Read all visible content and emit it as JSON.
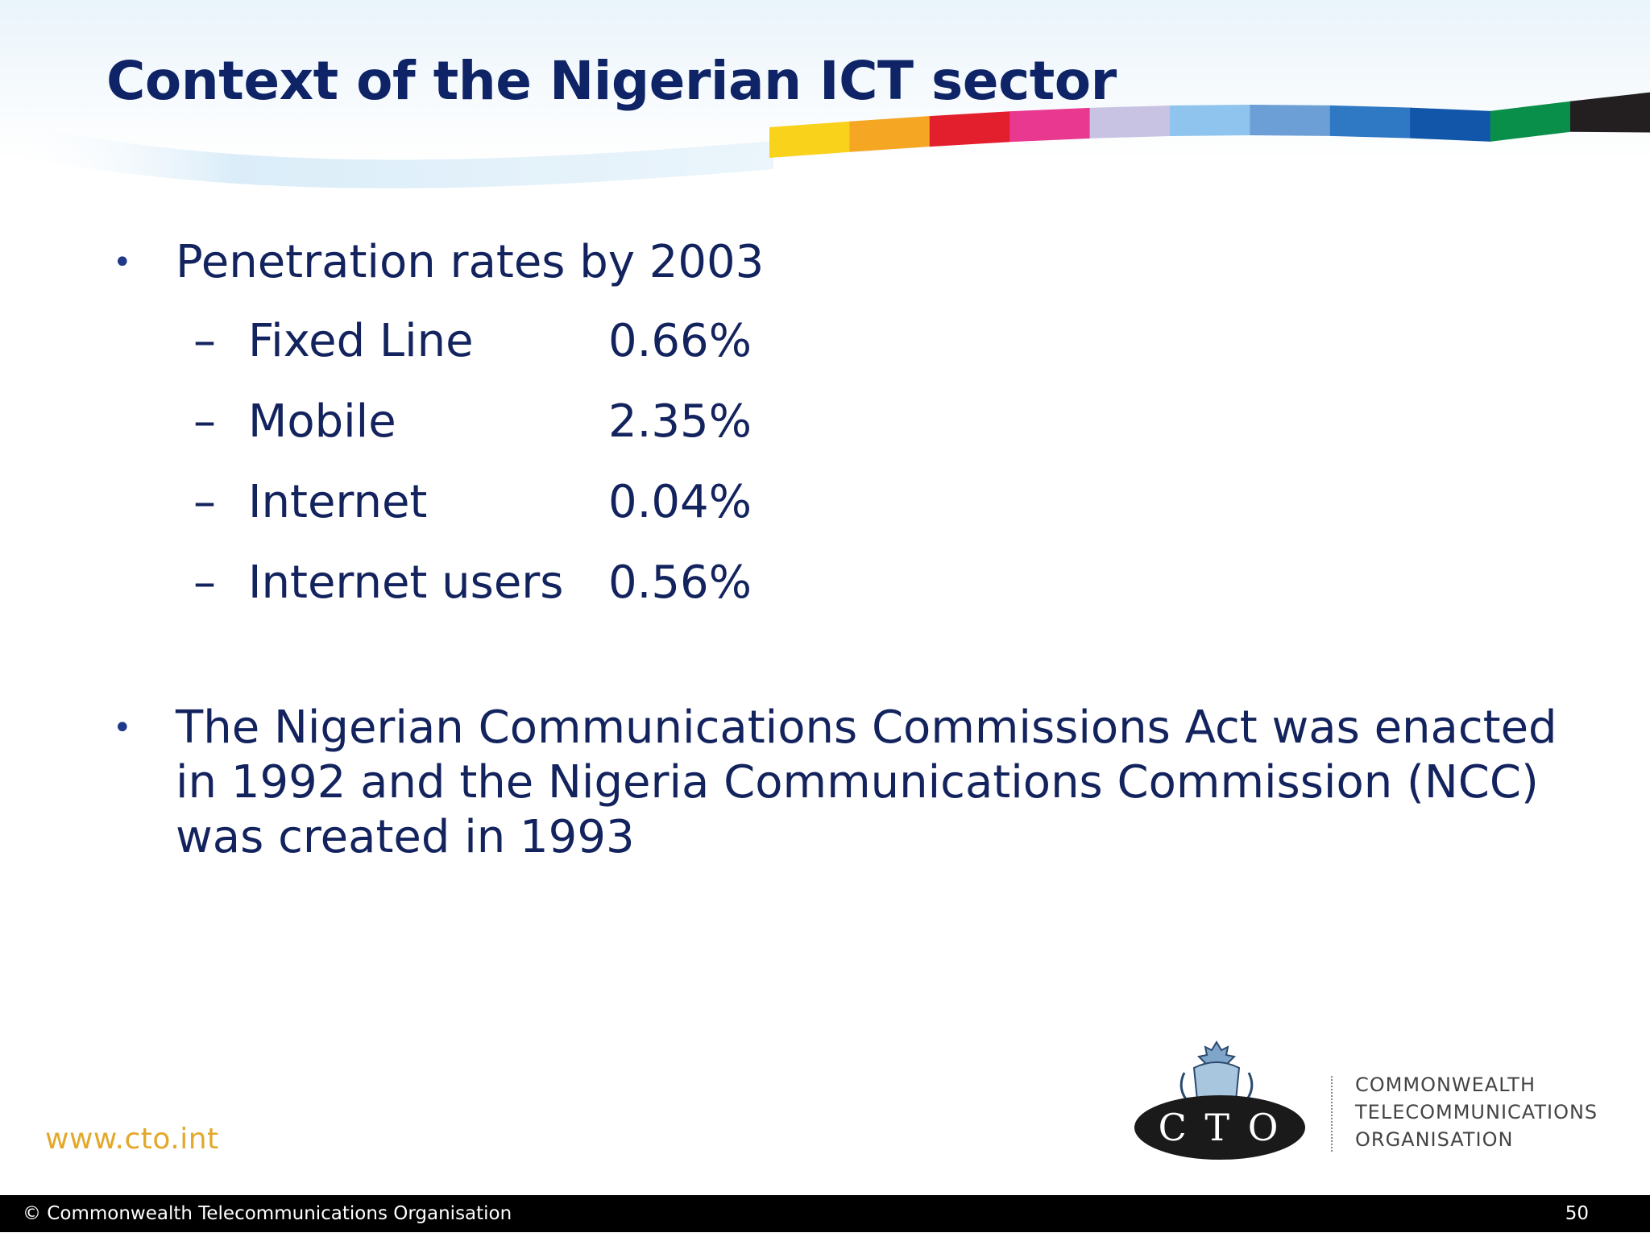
{
  "slide": {
    "title": "Context of the Nigerian ICT sector",
    "stripe_colors": [
      "#f9d21c",
      "#f5a623",
      "#e31e2d",
      "#e8388f",
      "#c9c3e3",
      "#8ec4ee",
      "#6b9fd6",
      "#2f78c4",
      "#1156a8",
      "#0a8f4a",
      "#231f20"
    ]
  },
  "content": {
    "bullet_symbol": "•",
    "dash_symbol": "–",
    "bullet1": "Penetration rates by 2003",
    "rates": [
      {
        "label": "Fixed Line",
        "value": "0.66%"
      },
      {
        "label": "Mobile",
        "value": "2.35%"
      },
      {
        "label": "Internet",
        "value": "0.04%"
      },
      {
        "label": "Internet users",
        "value": "0.56%"
      }
    ],
    "bullet2": "The Nigerian Communications Commissions Act was enacted in 1992 and the Nigeria Communications Commission (NCC) was created in 1993"
  },
  "branding": {
    "url": "www.cto.int",
    "logo_letters": "C T O",
    "org_lines": [
      "COMMONWEALTH",
      "TELECOMMUNICATIONS",
      "ORGANISATION"
    ]
  },
  "footer": {
    "copyright": "© Commonwealth Telecommunications Organisation",
    "page_number": "50"
  }
}
